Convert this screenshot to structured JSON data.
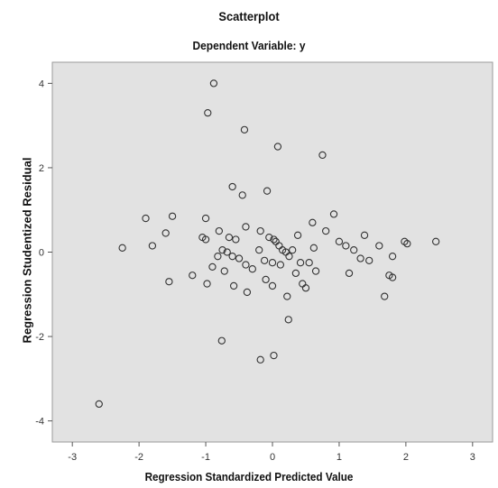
{
  "chart_data": {
    "type": "scatter",
    "title": "Scatterplot",
    "subtitle": "Dependent Variable: y",
    "xlabel": "Regression Standardized Predicted Value",
    "ylabel": "Regression Studentized Residual",
    "xlim": [
      -3.3,
      3.3
    ],
    "ylim": [
      -4.5,
      4.5
    ],
    "xticks": [
      -3,
      -2,
      -1,
      0,
      1,
      2,
      3
    ],
    "yticks": [
      -4,
      -2,
      0,
      2,
      4
    ],
    "grid": false,
    "plot_background": "#e2e2e2",
    "marker_color": "#333333",
    "points": [
      [
        -2.6,
        -3.6
      ],
      [
        -2.25,
        0.1
      ],
      [
        -1.9,
        0.8
      ],
      [
        -1.8,
        0.15
      ],
      [
        -1.6,
        0.45
      ],
      [
        -1.55,
        -0.7
      ],
      [
        -1.5,
        0.85
      ],
      [
        -1.2,
        -0.55
      ],
      [
        -1.05,
        0.35
      ],
      [
        -1.0,
        0.8
      ],
      [
        -1.0,
        0.3
      ],
      [
        -0.97,
        3.3
      ],
      [
        -0.98,
        -0.75
      ],
      [
        -0.9,
        -0.35
      ],
      [
        -0.88,
        4.0
      ],
      [
        -0.82,
        -0.1
      ],
      [
        -0.8,
        0.5
      ],
      [
        -0.76,
        -2.1
      ],
      [
        -0.75,
        0.05
      ],
      [
        -0.72,
        -0.45
      ],
      [
        -0.68,
        0.0
      ],
      [
        -0.65,
        0.35
      ],
      [
        -0.6,
        1.55
      ],
      [
        -0.6,
        -0.1
      ],
      [
        -0.58,
        -0.8
      ],
      [
        -0.55,
        0.3
      ],
      [
        -0.5,
        -0.15
      ],
      [
        -0.45,
        1.35
      ],
      [
        -0.42,
        2.9
      ],
      [
        -0.4,
        -0.3
      ],
      [
        -0.4,
        0.6
      ],
      [
        -0.38,
        -0.95
      ],
      [
        -0.3,
        -0.4
      ],
      [
        -0.2,
        0.05
      ],
      [
        -0.18,
        0.5
      ],
      [
        -0.18,
        -2.55
      ],
      [
        -0.12,
        -0.2
      ],
      [
        -0.1,
        -0.65
      ],
      [
        -0.08,
        1.45
      ],
      [
        -0.05,
        0.35
      ],
      [
        0.0,
        -0.25
      ],
      [
        0.0,
        -0.8
      ],
      [
        0.02,
        0.3
      ],
      [
        0.02,
        -2.45
      ],
      [
        0.05,
        0.25
      ],
      [
        0.08,
        2.5
      ],
      [
        0.1,
        0.15
      ],
      [
        0.12,
        -0.3
      ],
      [
        0.15,
        0.05
      ],
      [
        0.2,
        0.0
      ],
      [
        0.22,
        -1.05
      ],
      [
        0.24,
        -1.6
      ],
      [
        0.25,
        -0.1
      ],
      [
        0.3,
        0.05
      ],
      [
        0.35,
        -0.5
      ],
      [
        0.38,
        0.4
      ],
      [
        0.42,
        -0.25
      ],
      [
        0.45,
        -0.75
      ],
      [
        0.5,
        -0.85
      ],
      [
        0.55,
        -0.25
      ],
      [
        0.6,
        0.7
      ],
      [
        0.62,
        0.1
      ],
      [
        0.65,
        -0.45
      ],
      [
        0.75,
        2.3
      ],
      [
        0.8,
        0.5
      ],
      [
        0.92,
        0.9
      ],
      [
        1.0,
        0.25
      ],
      [
        1.1,
        0.15
      ],
      [
        1.15,
        -0.5
      ],
      [
        1.22,
        0.05
      ],
      [
        1.32,
        -0.15
      ],
      [
        1.38,
        0.4
      ],
      [
        1.45,
        -0.2
      ],
      [
        1.6,
        0.15
      ],
      [
        1.68,
        -1.05
      ],
      [
        1.75,
        -0.55
      ],
      [
        1.8,
        -0.6
      ],
      [
        1.8,
        -0.1
      ],
      [
        1.98,
        0.25
      ],
      [
        2.02,
        0.2
      ],
      [
        2.45,
        0.25
      ]
    ]
  }
}
